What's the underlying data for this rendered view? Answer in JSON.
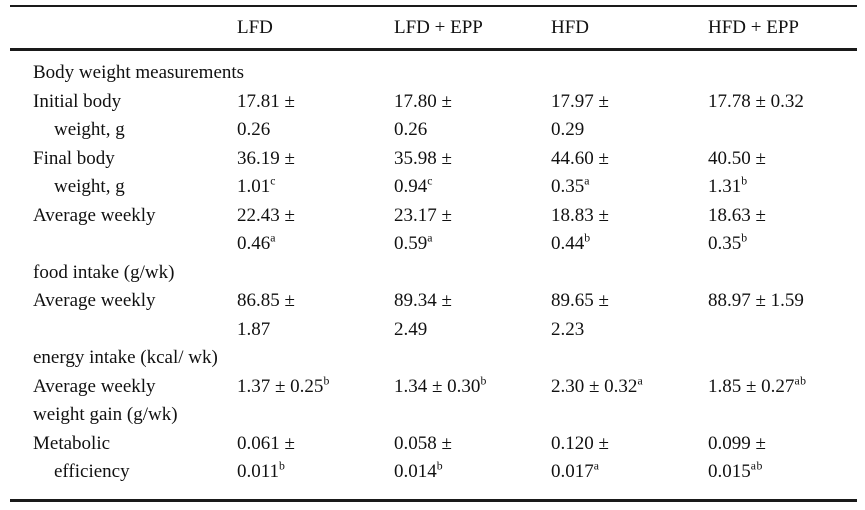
{
  "table": {
    "columns": [
      "",
      "LFD",
      "LFD + EPP",
      "HFD",
      "HFD + EPP"
    ],
    "section_title": "Body weight measurements",
    "lines": [
      {
        "label": "Body weight measurements",
        "indent": false,
        "cells": [
          "",
          "",
          "",
          ""
        ]
      },
      {
        "label": "Initial body",
        "indent": false,
        "cells": [
          "17.81 ±",
          "17.80 ±",
          "17.97 ±",
          "17.78 ± 0.32"
        ]
      },
      {
        "label": "weight, g",
        "indent": true,
        "cells": [
          "0.26",
          "0.26",
          "0.29",
          ""
        ]
      },
      {
        "label": "Final body",
        "indent": false,
        "cells": [
          "36.19 ±",
          "35.98 ±",
          "44.60 ±",
          "40.50 ±"
        ]
      },
      {
        "label": "weight, g",
        "indent": true,
        "cells": [
          "1.01^c",
          "0.94^c",
          "0.35^a",
          "1.31^b"
        ]
      },
      {
        "label": "Average weekly",
        "indent": false,
        "cells": [
          "22.43 ±",
          "23.17 ±",
          "18.83 ±",
          "18.63 ±"
        ]
      },
      {
        "label": "",
        "indent": false,
        "cells": [
          "0.46^a",
          "0.59^a",
          "0.44^b",
          "0.35^b"
        ]
      },
      {
        "label": "food intake (g/wk)",
        "indent": false,
        "cells": [
          "",
          "",
          "",
          ""
        ]
      },
      {
        "label": "Average weekly",
        "indent": false,
        "cells": [
          "86.85 ±",
          "89.34 ±",
          "89.65 ±",
          "88.97 ± 1.59"
        ]
      },
      {
        "label": "",
        "indent": false,
        "cells": [
          "1.87",
          "2.49",
          "2.23",
          ""
        ]
      },
      {
        "label": "energy intake (kcal/ wk)",
        "indent": false,
        "cells": [
          "",
          "",
          "",
          ""
        ]
      },
      {
        "label": "Average weekly",
        "indent": false,
        "cells": [
          "1.37 ± 0.25^b",
          "1.34 ± 0.30^b",
          "2.30 ± 0.32^a",
          "1.85 ± 0.27^ab"
        ]
      },
      {
        "label": "weight gain (g/wk)",
        "indent": false,
        "cells": [
          "",
          "",
          "",
          ""
        ]
      },
      {
        "label": "Metabolic",
        "indent": false,
        "cells": [
          "0.061 ±",
          "0.058 ±",
          "0.120 ±",
          "0.099 ±"
        ]
      },
      {
        "label": "efficiency",
        "indent": true,
        "cells": [
          "0.011^b",
          "0.014^b",
          "0.017^a",
          "0.015^ab"
        ]
      }
    ],
    "colors": {
      "text": "#111111",
      "rule": "#1a1a1a",
      "background": "#ffffff"
    }
  }
}
